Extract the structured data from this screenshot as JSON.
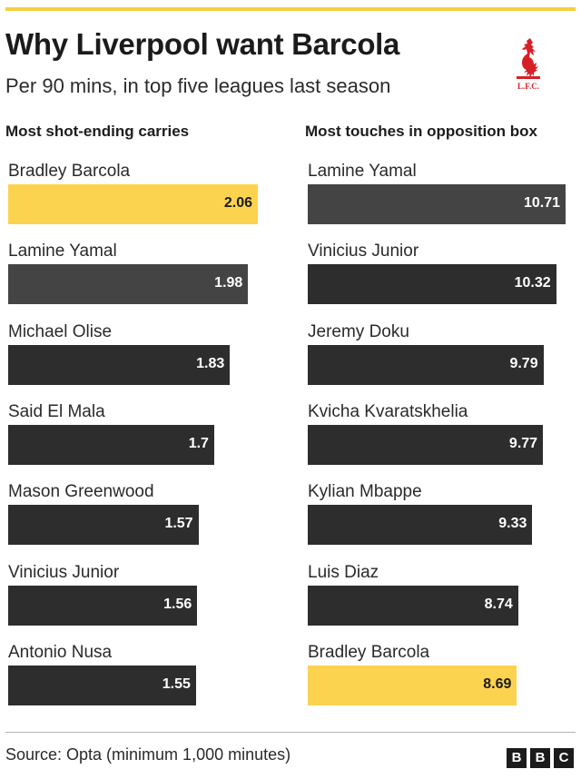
{
  "header": {
    "title": "Why Liverpool want Barcola",
    "subtitle": "Per 90 mins, in top five leagues last season",
    "crest_text": "L.F.C."
  },
  "footer": {
    "source": "Source: Opta (minimum 1,000 minutes)",
    "logo_letters": [
      "B",
      "B",
      "C"
    ]
  },
  "colors": {
    "highlight": "#fcd34f",
    "bar": "#2d2d2d",
    "bar_second": "#444444",
    "accent_rule": "#f4cf3f",
    "crest": "#d71f26"
  },
  "chart_data": [
    {
      "type": "bar",
      "orientation": "horizontal",
      "title": "Most shot-ending carries",
      "categories": [
        "Bradley Barcola",
        "Lamine Yamal",
        "Michael Olise",
        "Said El Mala",
        "Mason Greenwood",
        "Vinicius Junior",
        "Antonio Nusa"
      ],
      "values": [
        2.06,
        1.98,
        1.83,
        1.7,
        1.57,
        1.56,
        1.55
      ],
      "value_labels": [
        "2.06",
        "1.98",
        "1.83",
        "1.7",
        "1.57",
        "1.56",
        "1.55"
      ],
      "highlight": "Bradley Barcola",
      "xlim": [
        0,
        2.06
      ],
      "grid": false
    },
    {
      "type": "bar",
      "orientation": "horizontal",
      "title": "Most touches in opposition box",
      "categories": [
        "Lamine Yamal",
        "Vinicius Junior",
        "Jeremy Doku",
        "Kvicha Kvaratskhelia",
        "Kylian Mbappe",
        "Luis Diaz",
        "Bradley Barcola"
      ],
      "values": [
        10.71,
        10.32,
        9.79,
        9.77,
        9.33,
        8.74,
        8.69
      ],
      "value_labels": [
        "10.71",
        "10.32",
        "9.79",
        "9.77",
        "9.33",
        "8.74",
        "8.69"
      ],
      "highlight": "Bradley Barcola",
      "xlim": [
        0,
        10.71
      ],
      "grid": false
    }
  ]
}
